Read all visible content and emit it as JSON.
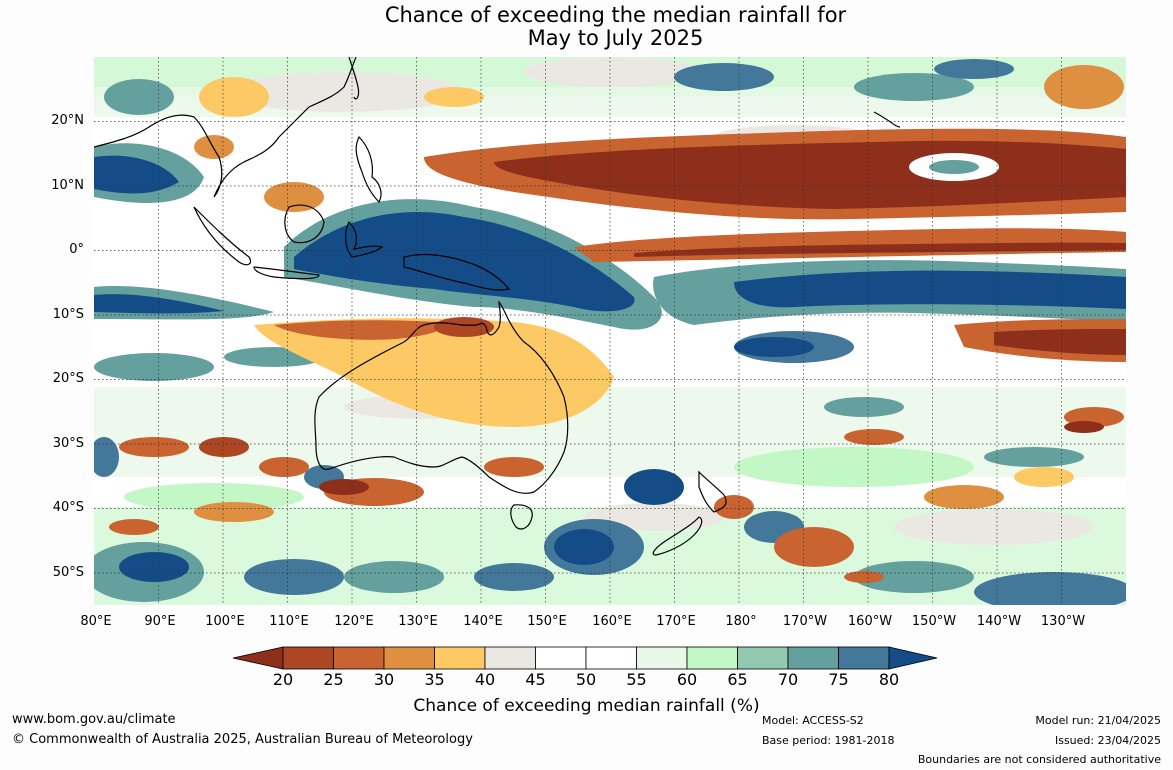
{
  "header": {
    "title_line1": "Chance of exceeding the median rainfall for",
    "title_line2": "May to July 2025"
  },
  "map": {
    "lat_labels": [
      "20°N",
      "10°N",
      "0°",
      "10°S",
      "20°S",
      "30°S",
      "40°S",
      "50°S"
    ],
    "lon_labels": [
      "80°E",
      "90°E",
      "100°E",
      "110°E",
      "120°E",
      "130°E",
      "140°E",
      "150°E",
      "160°E",
      "170°E",
      "180°",
      "170°W",
      "160°W",
      "150°W",
      "140°W",
      "130°W"
    ]
  },
  "legend": {
    "ticks": [
      "20",
      "25",
      "30",
      "35",
      "40",
      "45",
      "50",
      "55",
      "60",
      "65",
      "70",
      "75",
      "80"
    ],
    "colors": [
      "#8e2f1c",
      "#ad4623",
      "#c9632f",
      "#de9040",
      "#fdc964",
      "#ebe8e3",
      "#ffffff",
      "#ffffff",
      "#e8f7e7",
      "#c3f7c6",
      "#93c9b0",
      "#63a09e",
      "#43789a",
      "#144c87"
    ],
    "label": "Chance of exceeding median rainfall (%)"
  },
  "footer": {
    "website": "www.bom.gov.au/climate",
    "copyright": "© Commonwealth of Australia 2025, Australian Bureau of Meteorology",
    "model": "Model: ACCESS-S2",
    "base_period": "Base period: 1981-2018",
    "model_run": "Model run: 21/04/2025",
    "issued": "Issued: 23/04/2025",
    "disclaimer": "Boundaries are not considered authoritative"
  }
}
